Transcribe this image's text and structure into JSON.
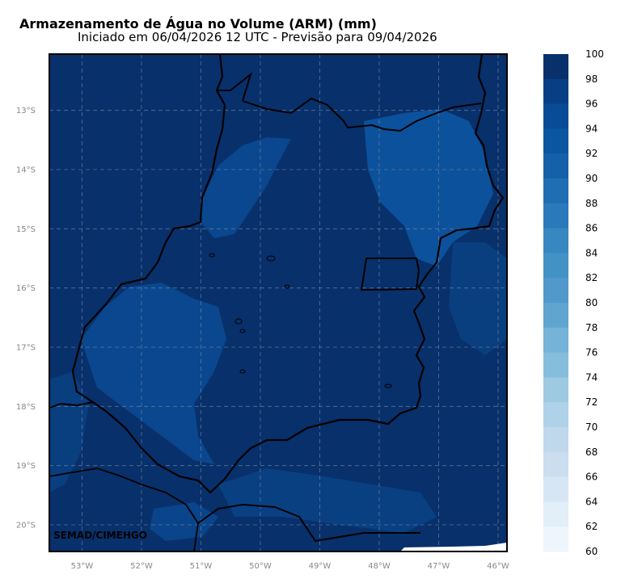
{
  "title": "Armazenamento de Água no Volume (ARM) (mm)",
  "subtitle": "Iniciado em 06/04/2026 12 UTC - Previsão para 09/04/2026",
  "credit": "SEMAD/CIMEHGO",
  "map": {
    "lon_range": [
      -53.55,
      -45.85
    ],
    "lat_range": [
      -20.45,
      -12.05
    ],
    "lon_ticks": [
      "53°W",
      "52°W",
      "51°W",
      "50°W",
      "49°W",
      "48°W",
      "47°W",
      "46°W"
    ],
    "lat_ticks": [
      "13°S",
      "14°S",
      "15°S",
      "16°S",
      "17°S",
      "18°S",
      "19°S",
      "20°S"
    ],
    "lon_tick_values": [
      -53,
      -52,
      -51,
      -50,
      -49,
      -48,
      -47,
      -46
    ],
    "lat_tick_values": [
      -13,
      -14,
      -15,
      -16,
      -17,
      -18,
      -19,
      -20
    ],
    "gridlines": true,
    "background_color": "#08306b"
  },
  "colorbar": {
    "labels": [
      "100",
      "98",
      "96",
      "94",
      "92",
      "90",
      "88",
      "86",
      "84",
      "82",
      "80",
      "78",
      "76",
      "74",
      "72",
      "70",
      "68",
      "66",
      "64",
      "62",
      "60"
    ],
    "colors": [
      "#08306b",
      "#083f84",
      "#084b96",
      "#0a56a0",
      "#1561a9",
      "#1f6eb3",
      "#2a7abb",
      "#3787c0",
      "#4292c6",
      "#5199ca",
      "#60a5d0",
      "#75b3d8",
      "#87bddc",
      "#9dcae1",
      "#b0d2e8",
      "#bfd8ec",
      "#cbdef0",
      "#d6e6f4",
      "#e2eef8",
      "#eef5fc"
    ]
  }
}
